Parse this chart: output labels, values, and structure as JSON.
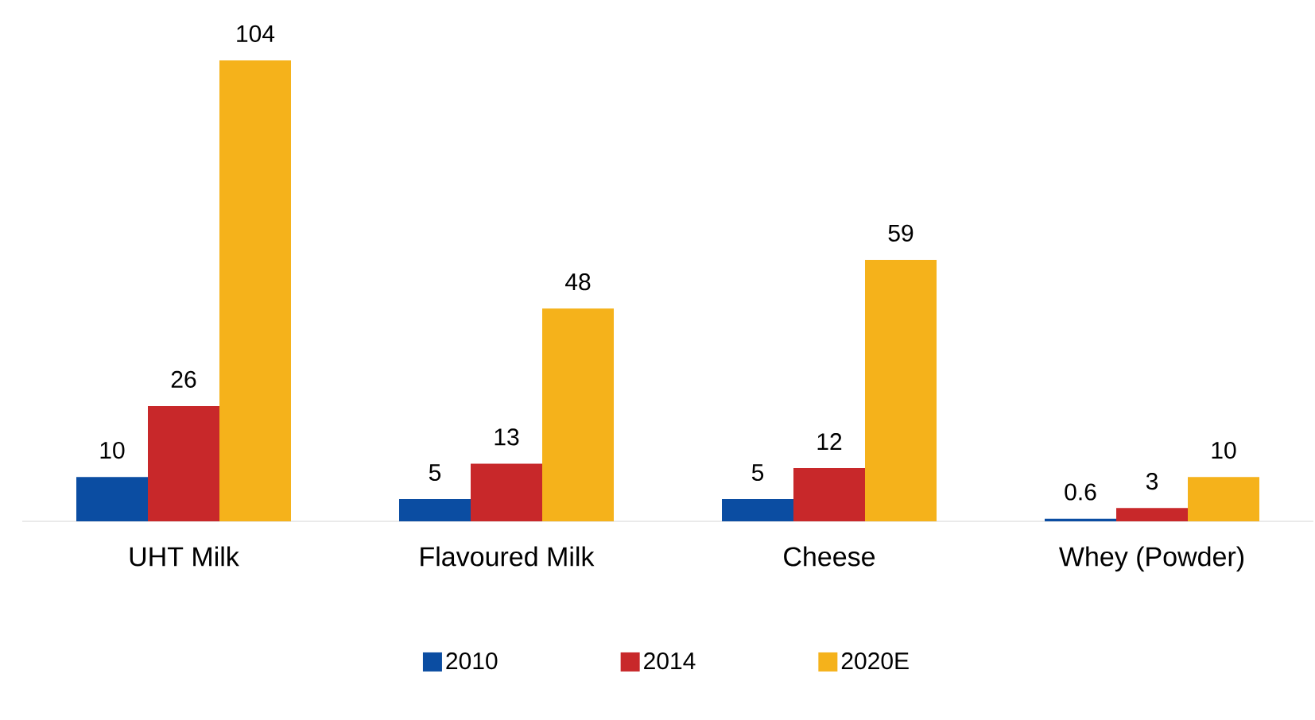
{
  "chart_data": {
    "type": "bar",
    "categories": [
      "UHT Milk",
      "Flavoured Milk",
      "Cheese",
      "Whey (Powder)"
    ],
    "series": [
      {
        "name": "2010",
        "color": "#0b4da2",
        "values": [
          10,
          5,
          5,
          0.6
        ]
      },
      {
        "name": "2014",
        "color": "#c8282a",
        "values": [
          26,
          13,
          12,
          3
        ]
      },
      {
        "name": "2020E",
        "color": "#f5b21b",
        "values": [
          104,
          48,
          59,
          10
        ]
      }
    ],
    "data_labels": true,
    "legend": "bottom"
  }
}
